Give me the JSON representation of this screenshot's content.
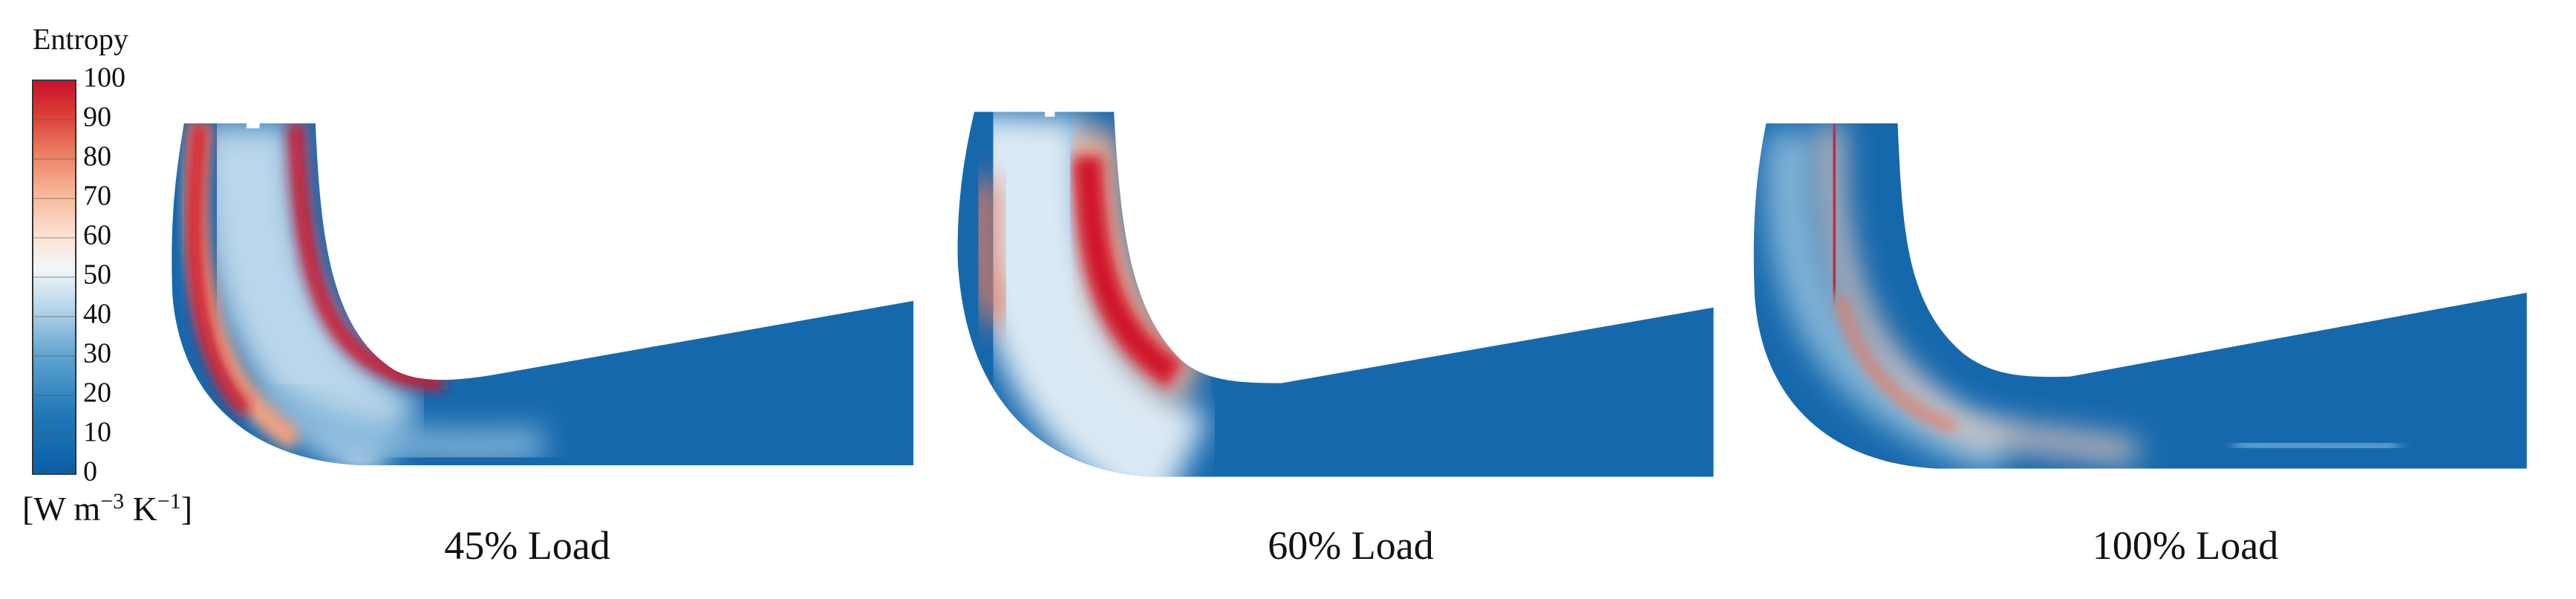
{
  "colorbar": {
    "title": "Entropy",
    "ticks": [
      0,
      10,
      20,
      30,
      40,
      50,
      60,
      70,
      80,
      90,
      100
    ],
    "unit": [
      "[W m",
      "−3",
      " K",
      "−1",
      "]"
    ]
  },
  "panels": [
    {
      "caption": "45% Load"
    },
    {
      "caption": "60% Load"
    },
    {
      "caption": "100% Load"
    }
  ]
}
